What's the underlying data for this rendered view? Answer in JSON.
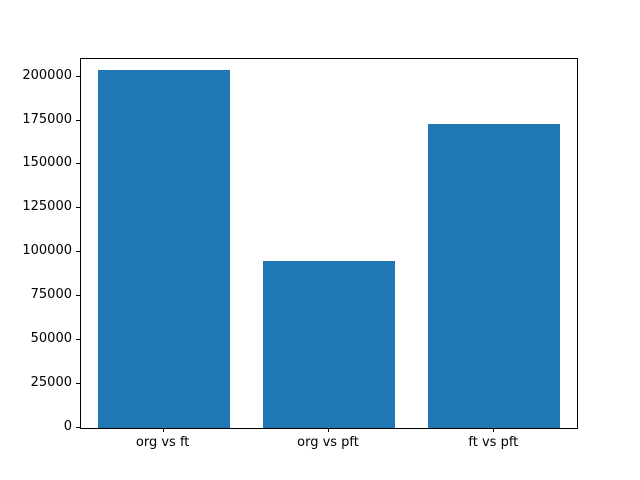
{
  "chart_data": {
    "type": "bar",
    "title": "",
    "xlabel": "",
    "ylabel": "",
    "categories": [
      "org vs ft",
      "org vs pft",
      "ft vs pft"
    ],
    "values": [
      204000,
      95000,
      173000
    ],
    "yticks": [
      0,
      25000,
      50000,
      75000,
      100000,
      125000,
      150000,
      175000,
      200000
    ],
    "ylim": [
      0,
      210000
    ],
    "bar_color": "#1f77b4",
    "grid": false,
    "legend": null
  }
}
